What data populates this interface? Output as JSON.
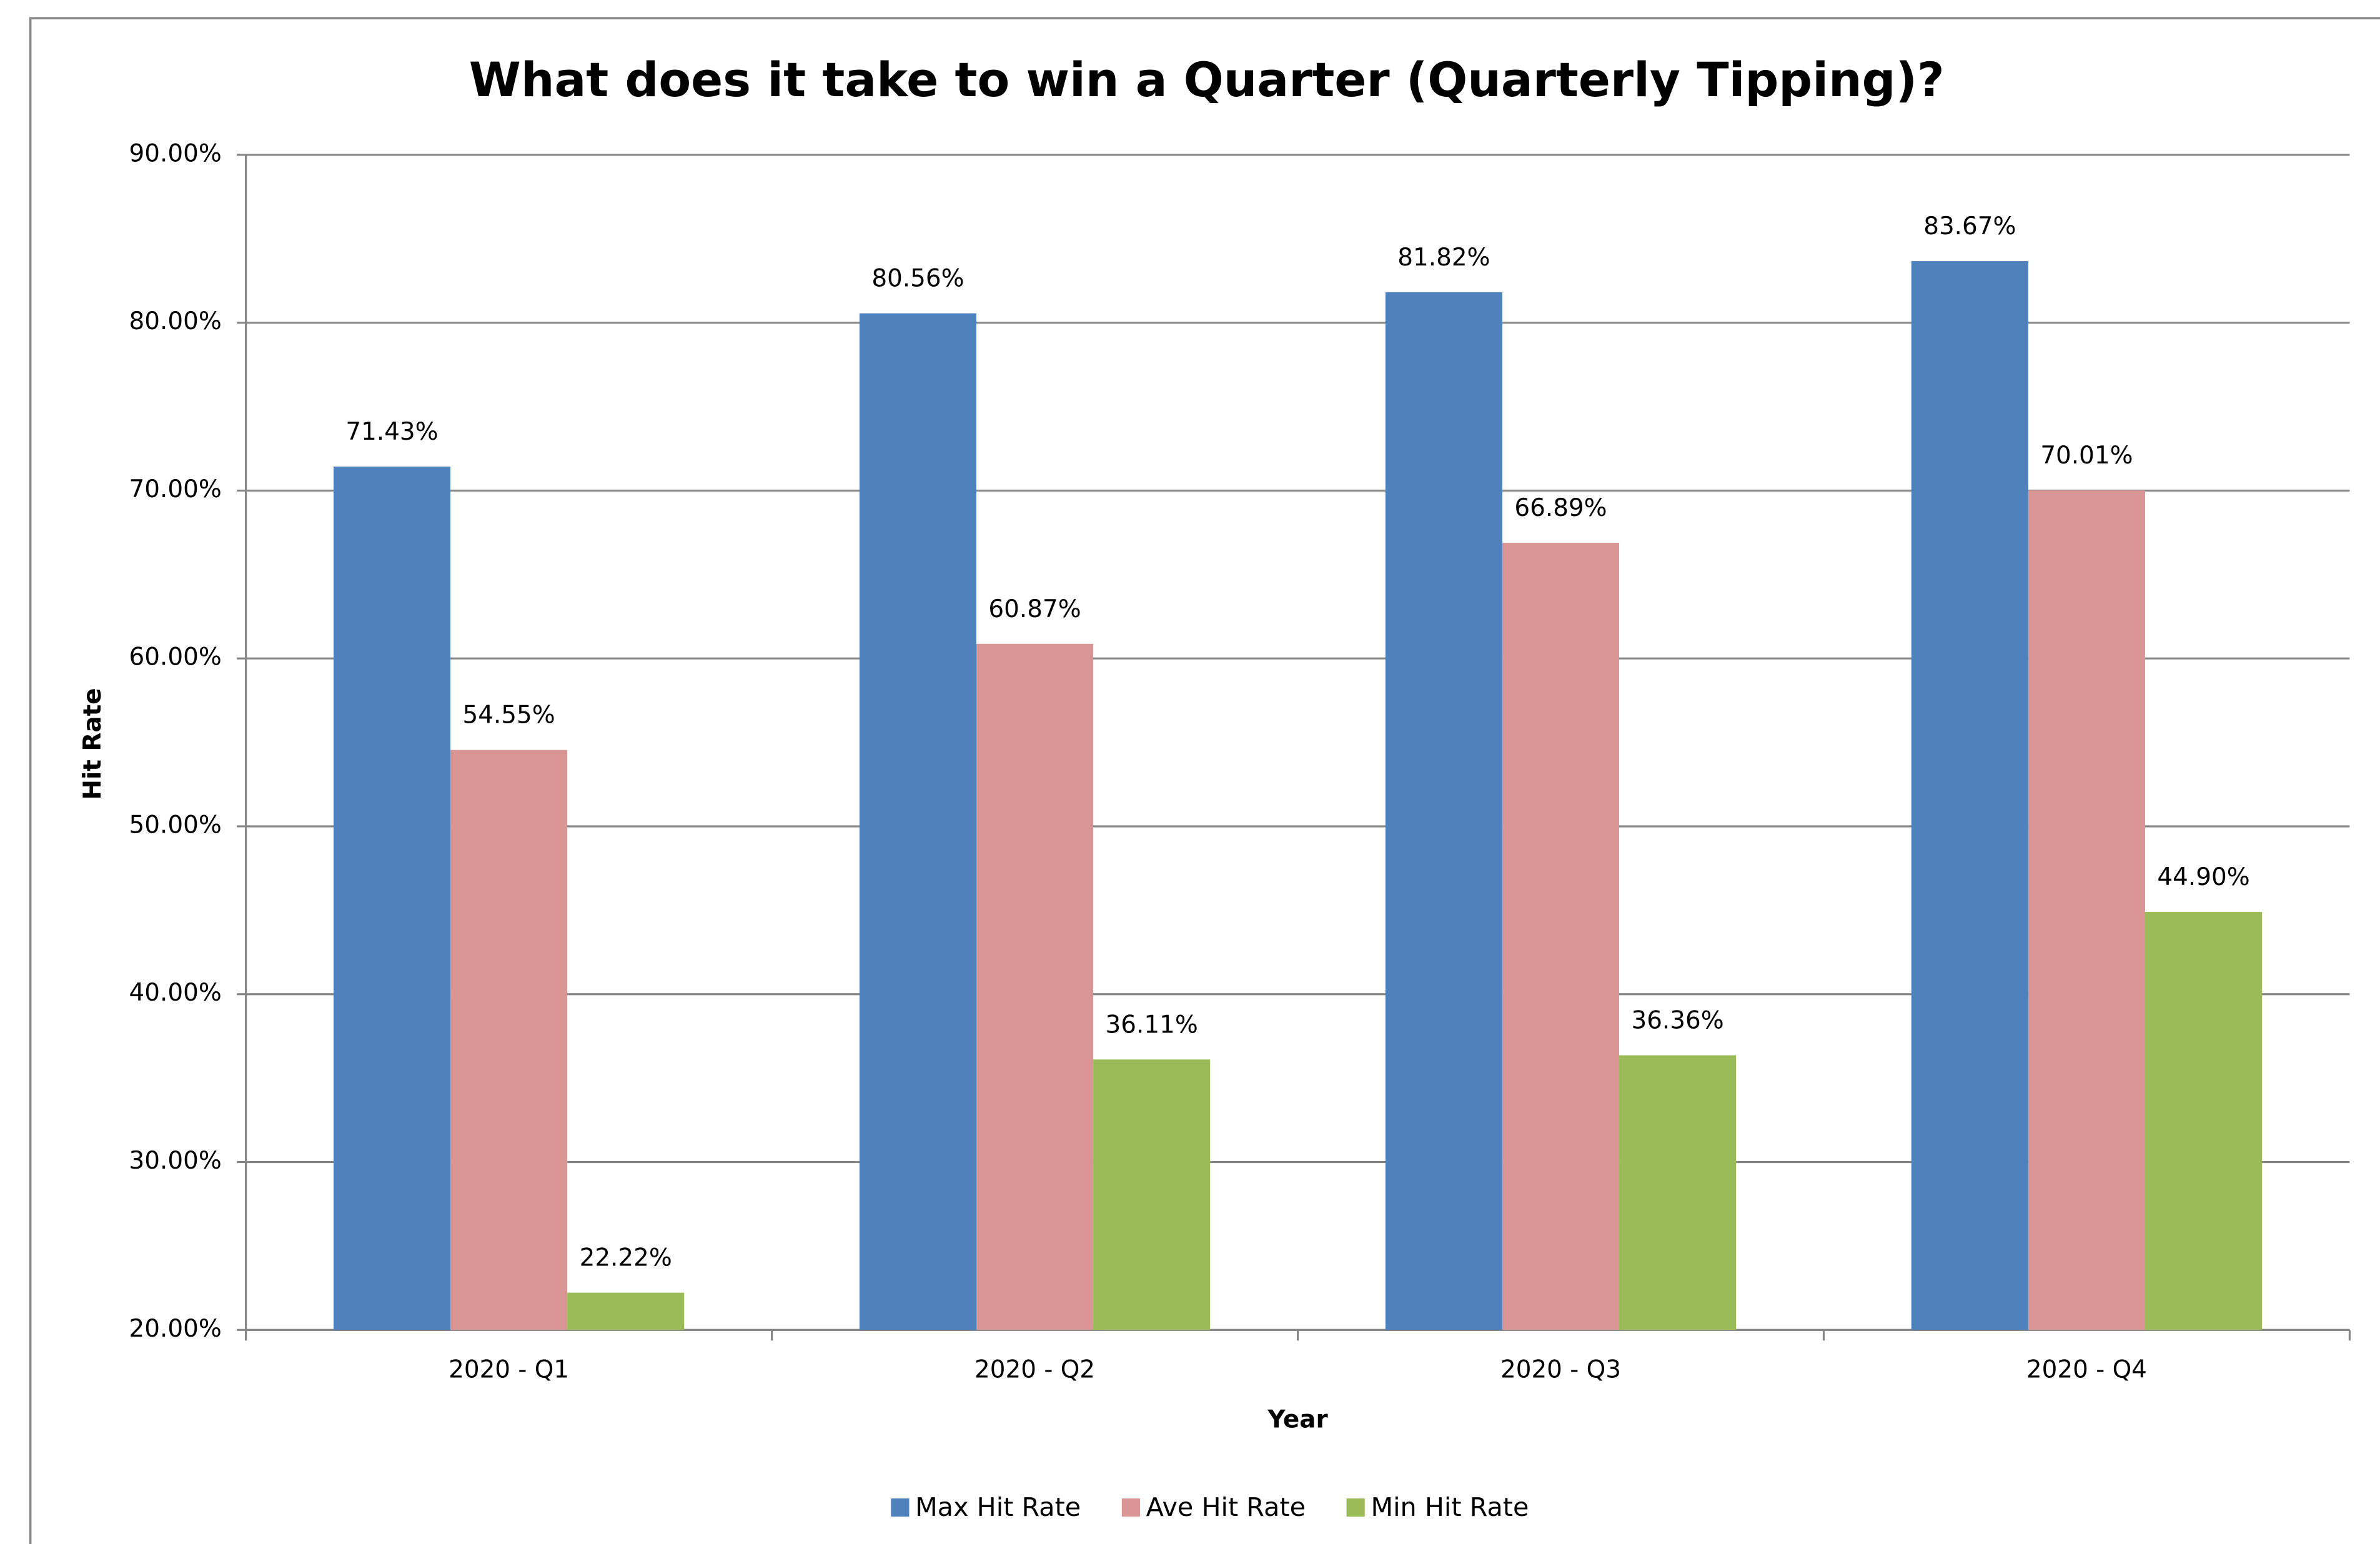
{
  "chart_data": {
    "type": "bar",
    "title": "What does it take to win a Quarter (Quarterly Tipping)?",
    "x_label": "Year",
    "y_label": "Hit Rate",
    "categories": [
      "2020 - Q1",
      "2020 - Q2",
      "2020 - Q3",
      "2020 - Q4"
    ],
    "series": [
      {
        "name": "Max Hit Rate",
        "color": "#4f81bd",
        "values": [
          71.43,
          80.56,
          81.82,
          83.67
        ],
        "value_labels": [
          "71.43%",
          "80.56%",
          "81.82%",
          "83.67%"
        ]
      },
      {
        "name": "Ave Hit Rate",
        "color": "#d99694",
        "values": [
          54.55,
          60.87,
          66.89,
          70.01
        ],
        "value_labels": [
          "54.55%",
          "60.87%",
          "66.89%",
          "70.01%"
        ]
      },
      {
        "name": "Min Hit Rate",
        "color": "#9bbb59",
        "values": [
          22.22,
          36.11,
          36.36,
          44.9
        ],
        "value_labels": [
          "22.22%",
          "36.11%",
          "36.36%",
          "44.90%"
        ]
      }
    ],
    "ylim": [
      20,
      90
    ],
    "yticks": [
      {
        "value": 20,
        "label": "20.00%"
      },
      {
        "value": 30,
        "label": "30.00%"
      },
      {
        "value": 40,
        "label": "40.00%"
      },
      {
        "value": 50,
        "label": "50.00%"
      },
      {
        "value": 60,
        "label": "60.00%"
      },
      {
        "value": 70,
        "label": "70.00%"
      },
      {
        "value": 80,
        "label": "80.00%"
      },
      {
        "value": 90,
        "label": "90.00%"
      }
    ],
    "grid": true,
    "legend": "bottom"
  }
}
